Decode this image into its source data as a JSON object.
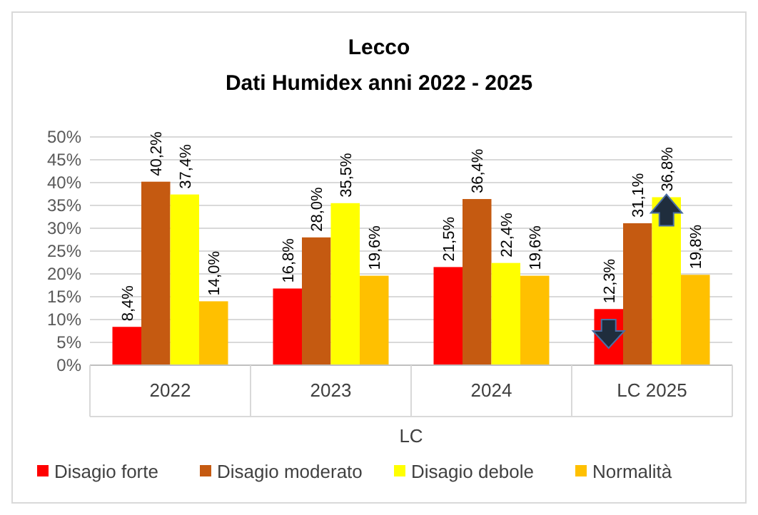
{
  "chart_data": {
    "type": "bar",
    "title": "Lecco",
    "subtitle": "Dati Humidex anni 2022 - 2025",
    "xlabel": "LC",
    "categories": [
      "2022",
      "2023",
      "2024",
      "LC 2025"
    ],
    "series": [
      {
        "name": "Disagio forte",
        "color": "#ff0000",
        "values": [
          8.4,
          16.8,
          21.5,
          12.3
        ],
        "value_labels": [
          "8,4%",
          "16,8%",
          "21,5%",
          "12,3%"
        ]
      },
      {
        "name": "Disagio moderato",
        "color": "#c55a11",
        "values": [
          40.2,
          28.0,
          36.4,
          31.1
        ],
        "value_labels": [
          "40,2%",
          "28,0%",
          "36,4%",
          "31,1%"
        ]
      },
      {
        "name": "Disagio debole",
        "color": "#ffff00",
        "values": [
          37.4,
          35.5,
          22.4,
          36.8
        ],
        "value_labels": [
          "37,4%",
          "35,5%",
          "22,4%",
          "36,8%"
        ]
      },
      {
        "name": "Normalità",
        "color": "#ffc000",
        "values": [
          14.0,
          19.6,
          19.6,
          19.8
        ],
        "value_labels": [
          "14,0%",
          "19,6%",
          "19,6%",
          "19,8%"
        ]
      }
    ],
    "ylim": [
      0,
      50
    ],
    "yticks": [
      {
        "value": 0,
        "label": "0%"
      },
      {
        "value": 5,
        "label": "5%"
      },
      {
        "value": 10,
        "label": "10%"
      },
      {
        "value": 15,
        "label": "15%"
      },
      {
        "value": 20,
        "label": "20%"
      },
      {
        "value": 25,
        "label": "25%"
      },
      {
        "value": 30,
        "label": "30%"
      },
      {
        "value": 35,
        "label": "35%"
      },
      {
        "value": 40,
        "label": "40%"
      },
      {
        "value": 45,
        "label": "45%"
      },
      {
        "value": 50,
        "label": "50%"
      }
    ],
    "grid": "y",
    "legend": "bottom"
  }
}
